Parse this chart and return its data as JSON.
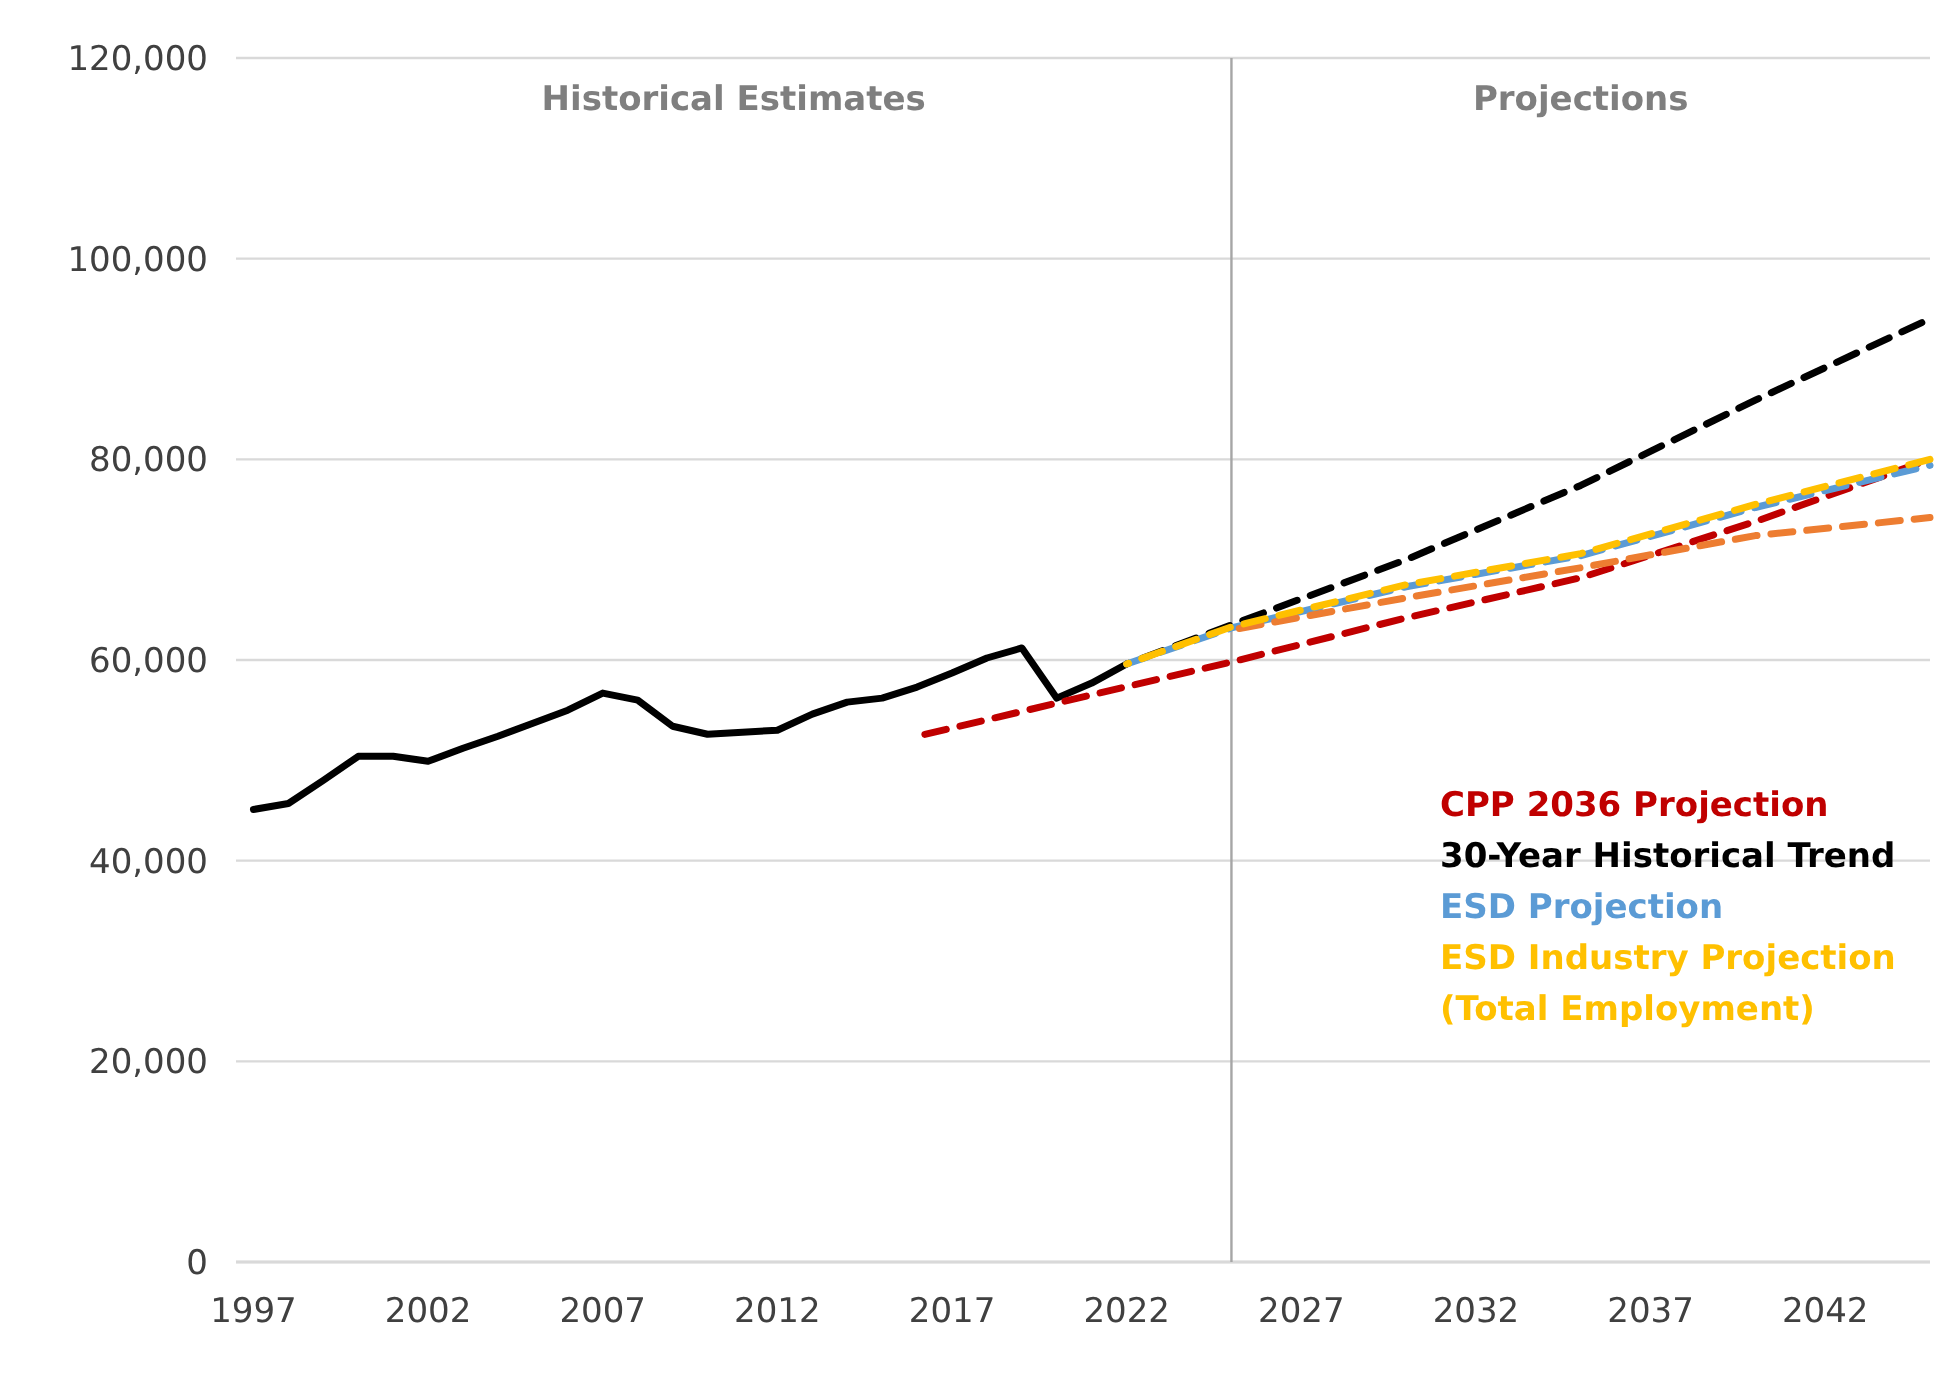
{
  "chart_data": {
    "type": "line",
    "xlim": [
      1996.5,
      2045
    ],
    "xticks": [
      1997,
      2002,
      2007,
      2012,
      2017,
      2022,
      2027,
      2032,
      2037,
      2042
    ],
    "ylim": [
      0,
      120000
    ],
    "yticks": [
      {
        "value": 0,
        "label": "0"
      },
      {
        "value": 20000,
        "label": "20,000"
      },
      {
        "value": 40000,
        "label": "40,000"
      },
      {
        "value": 60000,
        "label": "60,000"
      },
      {
        "value": 80000,
        "label": "80,000"
      },
      {
        "value": 100000,
        "label": "100,000"
      },
      {
        "value": 120000,
        "label": "120,000"
      }
    ],
    "grid": "y",
    "legend": "right",
    "marker": "none",
    "ref_lines": [
      {
        "axis": "x",
        "value": 2025,
        "color": "#a6a6a6"
      }
    ],
    "annotations": [
      "Historical Estimates",
      "Projections"
    ],
    "series": [
      {
        "color": "#000000",
        "line_style": "solid",
        "x": [
          1997,
          1998,
          1999,
          2000,
          2001,
          2002,
          2003,
          2004,
          2005,
          2006,
          2007,
          2008,
          2009,
          2010,
          2011,
          2012,
          2013,
          2014,
          2015,
          2016,
          2017,
          2018,
          2019,
          2020,
          2021,
          2022
        ],
        "values": [
          45100,
          45700,
          48000,
          50400,
          50400,
          49900,
          51200,
          52400,
          53700,
          55000,
          56700,
          56000,
          53400,
          52600,
          52800,
          53000,
          54600,
          55800,
          56200,
          57300,
          58700,
          60200,
          61200,
          56200,
          57700,
          59600
        ]
      },
      {
        "name": "CPP 2036 Projection",
        "color": "#c00000",
        "line_style": "dashed",
        "x": [
          2016,
          2020,
          2025,
          2030,
          2035,
          2040,
          2045
        ],
        "values": [
          52400,
          55700,
          59800,
          64200,
          68200,
          73800,
          80000
        ]
      },
      {
        "name": "30-Year Historical Trend",
        "color": "#000000",
        "line_style": "dashed",
        "x": [
          2022,
          2025,
          2030,
          2035,
          2040,
          2045
        ],
        "values": [
          59600,
          63500,
          70000,
          77400,
          85900,
          94000
        ]
      },
      {
        "name": "ESD Projection",
        "color": "#5b9bd5",
        "line_style": "dashed",
        "x": [
          2022,
          2025,
          2030,
          2035,
          2040,
          2045
        ],
        "values": [
          59600,
          63200,
          67300,
          70400,
          75200,
          79400
        ]
      },
      {
        "color": "#ed7d31",
        "line_style": "dashed",
        "x": [
          2025,
          2030,
          2035,
          2040,
          2045
        ],
        "values": [
          63000,
          66200,
          69200,
          72400,
          74200
        ]
      },
      {
        "name": "ESD Industry Projection (Total Employment)",
        "color": "#ffc000",
        "line_style": "dashed",
        "x": [
          2022,
          2025,
          2030,
          2035,
          2040,
          2045
        ],
        "values": [
          59600,
          63300,
          67500,
          70600,
          75500,
          80000
        ]
      }
    ]
  }
}
